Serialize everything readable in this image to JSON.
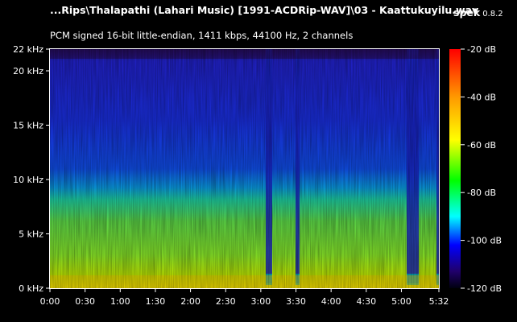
{
  "header": {
    "file_title": "...Rips\\Thalapathi (Lahari Music) [1991-ACDRip-WAV]\\03 - Kaattukuyilu.wav",
    "app_name": "spek",
    "app_version": "0.8.2",
    "audio_info": "PCM signed 16-bit little-endian, 1411 kbps, 44100 Hz, 2 channels"
  },
  "frequency_axis": {
    "labels": [
      "22 kHz",
      "20 kHz",
      "15 kHz",
      "10 kHz",
      "5 kHz",
      "0 kHz"
    ],
    "values_khz": [
      22,
      20,
      15,
      10,
      5,
      0
    ],
    "max_khz": 22
  },
  "time_axis": {
    "labels": [
      "0:00",
      "0:30",
      "1:00",
      "1:30",
      "2:00",
      "2:30",
      "3:00",
      "3:30",
      "4:00",
      "4:30",
      "5:00",
      "5:32"
    ],
    "values_s": [
      0,
      30,
      60,
      90,
      120,
      150,
      180,
      210,
      240,
      270,
      300,
      332
    ],
    "max_s": 332
  },
  "db_scale": {
    "labels": [
      "-20 dB",
      "-40 dB",
      "-60 dB",
      "-80 dB",
      "-100 dB",
      "-120 dB"
    ],
    "values_db": [
      -20,
      -40,
      -60,
      -80,
      -100,
      -120
    ],
    "colors": [
      "#ff0000",
      "#ffff00",
      "#00ff00",
      "#00ffff",
      "#0000ff",
      "#000020"
    ]
  }
}
